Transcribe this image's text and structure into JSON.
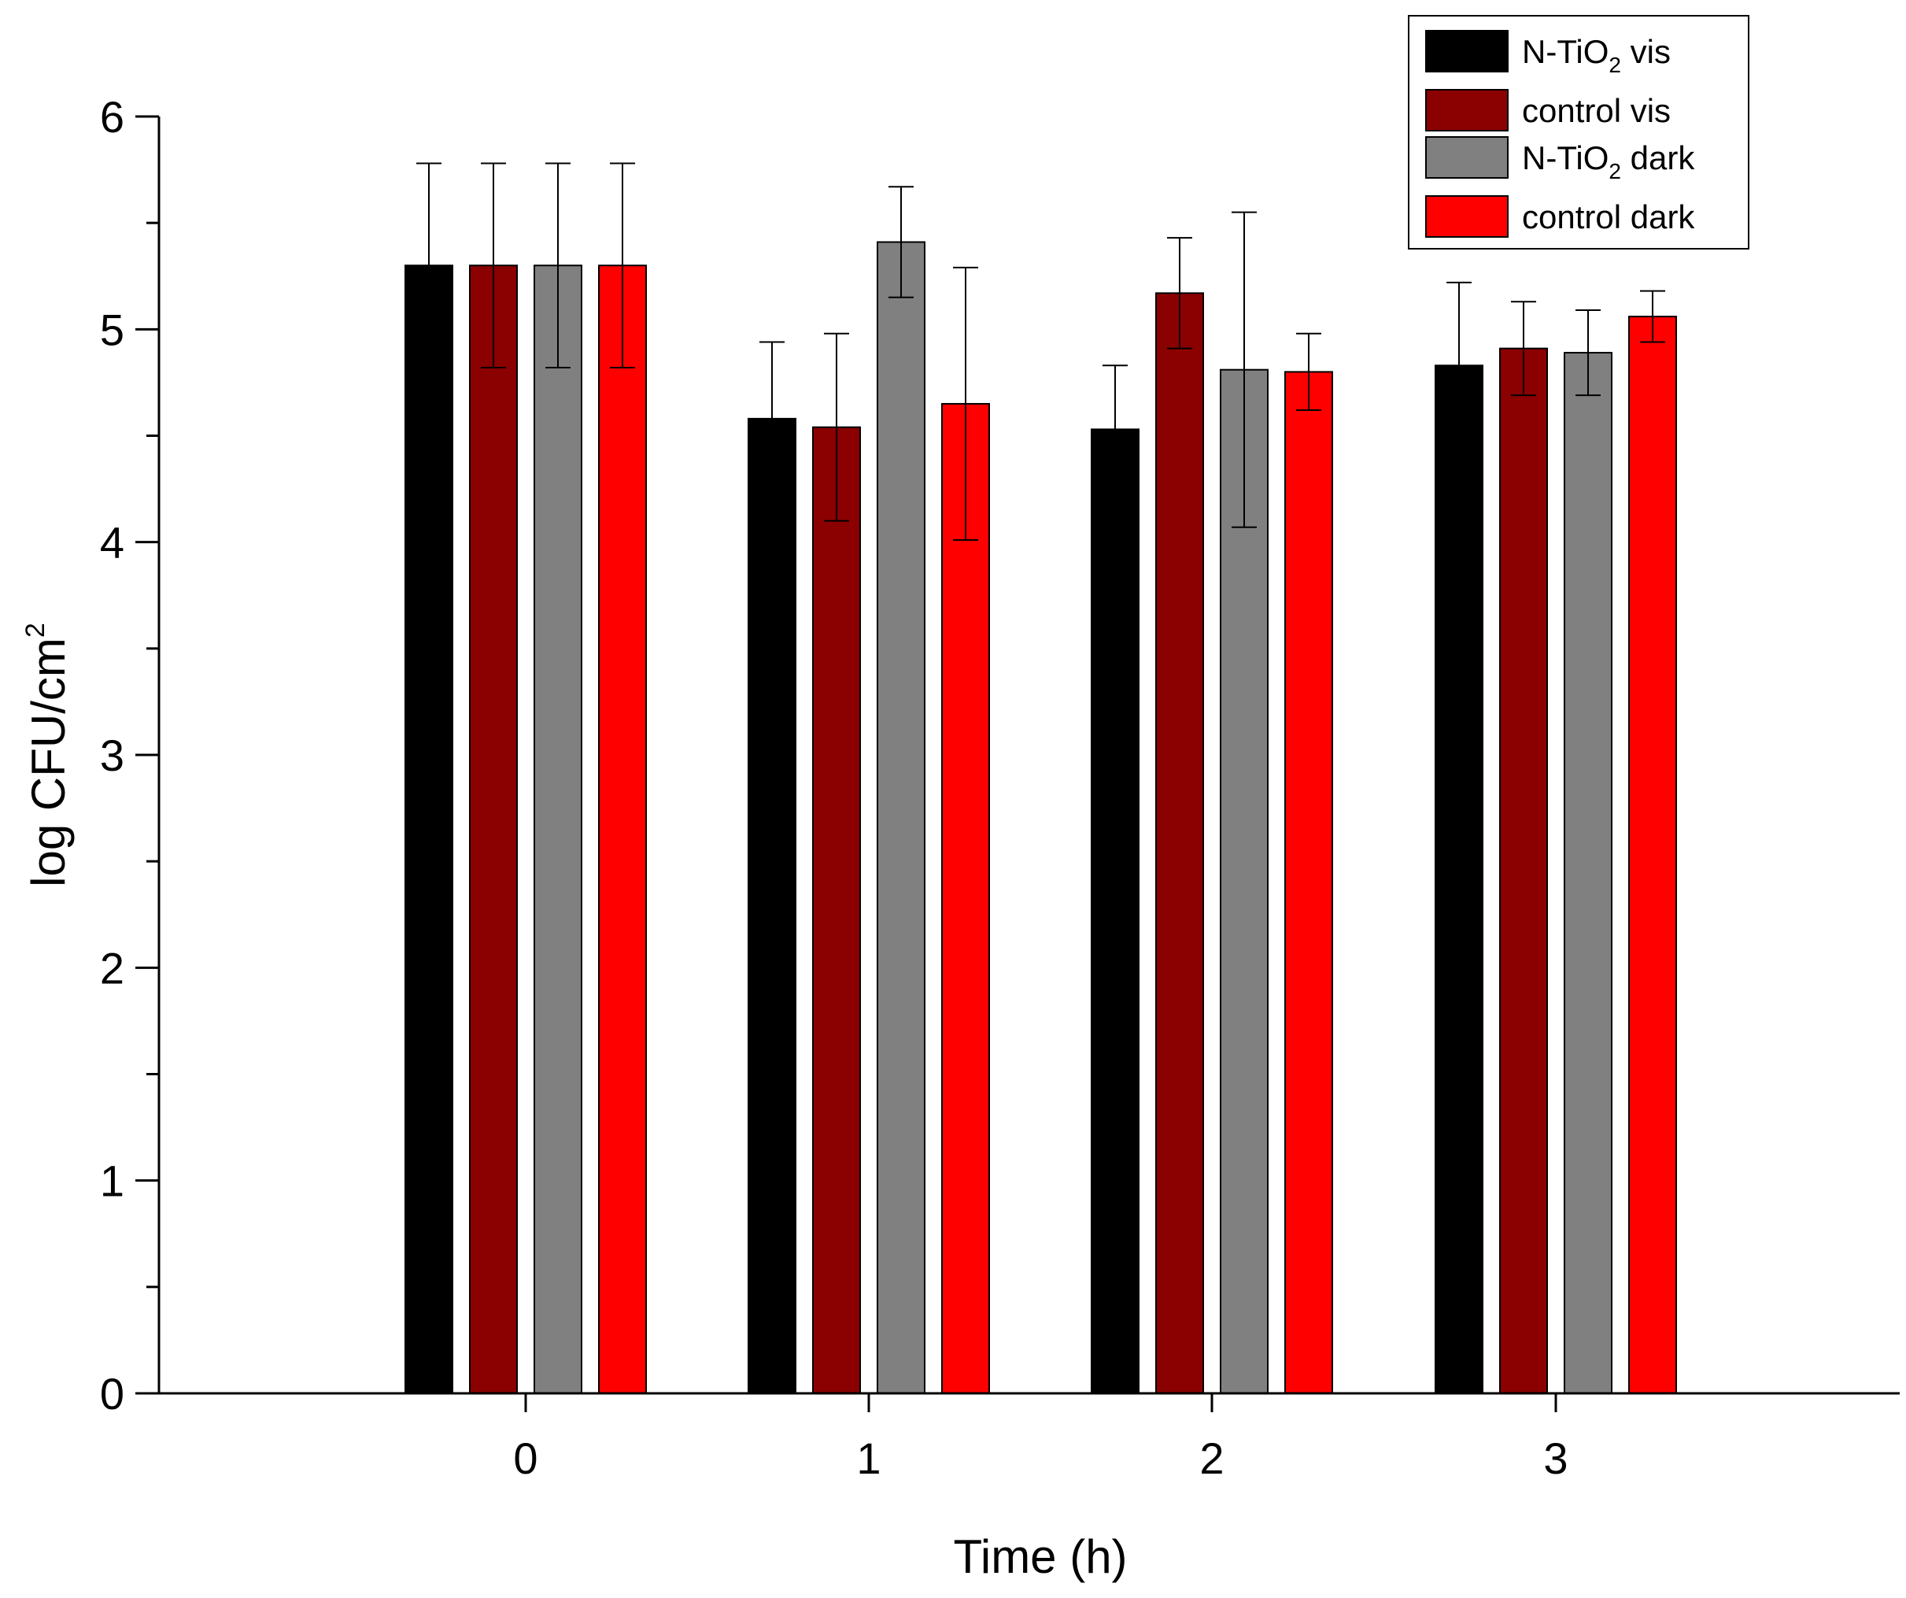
{
  "chart_data": {
    "type": "bar",
    "title": "",
    "xlabel": "Time (h)",
    "ylabel": {
      "base": "log CFU/cm",
      "sup": "2"
    },
    "ylim": [
      0,
      6
    ],
    "yticks": [
      "0",
      "1",
      "2",
      "3",
      "4",
      "5",
      "6"
    ],
    "categories": [
      "0",
      "1",
      "2",
      "3"
    ],
    "legend_position": "top-right",
    "series": [
      {
        "name": "N-TiO₂ vis",
        "label_parts": {
          "pre": "N-TiO",
          "sub": "2",
          "post": " vis"
        },
        "color": "#000000",
        "values": [
          5.3,
          4.58,
          4.53,
          4.83
        ],
        "errors": [
          0.48,
          0.36,
          0.3,
          0.39
        ]
      },
      {
        "name": "control vis",
        "label_parts": {
          "pre": "control vis",
          "sub": "",
          "post": ""
        },
        "color": "#8b0000",
        "values": [
          5.3,
          4.54,
          5.17,
          4.91
        ],
        "errors": [
          0.48,
          0.44,
          0.26,
          0.22
        ]
      },
      {
        "name": "N-TiO₂ dark",
        "label_parts": {
          "pre": "N-TiO",
          "sub": "2",
          "post": " dark"
        },
        "color": "#808080",
        "values": [
          5.3,
          5.41,
          4.81,
          4.89
        ],
        "errors": [
          0.48,
          0.26,
          0.74,
          0.2
        ]
      },
      {
        "name": "control dark",
        "label_parts": {
          "pre": "control dark",
          "sub": "",
          "post": ""
        },
        "color": "#ff0000",
        "values": [
          5.3,
          4.65,
          4.8,
          5.06
        ],
        "errors": [
          0.48,
          0.64,
          0.18,
          0.12
        ]
      }
    ]
  }
}
